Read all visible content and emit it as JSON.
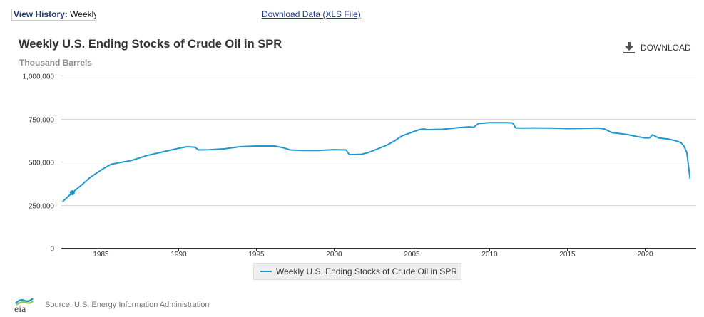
{
  "header": {
    "view_history_label": "View History:",
    "view_history_value": "Weekly",
    "download_data_link": "Download Data (XLS File)"
  },
  "chart_header": {
    "title": "Weekly U.S. Ending Stocks of Crude Oil in SPR",
    "subtitle": "Thousand Barrels",
    "download_label": "DOWNLOAD"
  },
  "footer": {
    "source": "Source: U.S. Energy Information Administration",
    "logo_text": "eia"
  },
  "colors": {
    "series": "#1f97d1",
    "grid": "#d8d8d8",
    "axis": "#333333"
  },
  "chart_data": {
    "type": "line",
    "title": "Weekly U.S. Ending Stocks of Crude Oil in SPR",
    "subtitle": "Thousand Barrels",
    "xlabel": "",
    "ylabel": "Thousand Barrels",
    "xlim": [
      1982.5,
      2023.3
    ],
    "ylim": [
      0,
      1000000
    ],
    "yticks": [
      0,
      250000,
      500000,
      750000,
      1000000
    ],
    "ytick_labels": [
      "0",
      "250,000",
      "500,000",
      "750,000",
      "1,000,000"
    ],
    "xticks": [
      1985,
      1990,
      1995,
      2000,
      2005,
      2010,
      2015,
      2020
    ],
    "xtick_labels": [
      "1985",
      "1990",
      "1995",
      "2000",
      "2005",
      "2010",
      "2015",
      "2020"
    ],
    "grid": true,
    "legend_position": "bottom-center",
    "highlight_point": {
      "x": 1983.2,
      "y": 320000
    },
    "series": [
      {
        "name": "Weekly U.S. Ending Stocks of Crude Oil in SPR",
        "x": [
          1982.6,
          1983.2,
          1983.8,
          1984.3,
          1984.7,
          1985.2,
          1985.7,
          1986.2,
          1987,
          1988,
          1989,
          1990,
          1990.6,
          1991.1,
          1991.3,
          1992,
          1993,
          1994,
          1995,
          1996.2,
          1996.8,
          1997.2,
          1998,
          1999,
          2000,
          2000.8,
          2001,
          2001.8,
          2002.2,
          2002.8,
          2003.4,
          2003.9,
          2004.4,
          2005,
          2005.5,
          2005.8,
          2006,
          2007,
          2008,
          2008.7,
          2009,
          2009.3,
          2010,
          2011.1,
          2011.5,
          2011.7,
          2012,
          2013,
          2014,
          2015,
          2016,
          2017,
          2017.4,
          2017.9,
          2018.3,
          2018.9,
          2019.5,
          2020,
          2020.3,
          2020.5,
          2020.9,
          2021.5,
          2022,
          2022.3,
          2022.5,
          2022.7,
          2022.9
        ],
        "values": [
          270000,
          320000,
          365000,
          405000,
          430000,
          460000,
          485000,
          494000,
          507000,
          536000,
          556000,
          577000,
          587000,
          584000,
          568000,
          569000,
          575000,
          587000,
          591000,
          591000,
          580000,
          568000,
          565000,
          565000,
          570000,
          568000,
          541000,
          543000,
          552000,
          573000,
          595000,
          620000,
          650000,
          670000,
          686000,
          690000,
          686000,
          688000,
          697000,
          702000,
          700000,
          721000,
          726000,
          726000,
          725000,
          696000,
          695000,
          696000,
          695000,
          692000,
          693000,
          695000,
          690000,
          668000,
          664000,
          657000,
          646000,
          638000,
          638000,
          656000,
          637000,
          632000,
          621000,
          611000,
          593000,
          554000,
          405000
        ]
      }
    ]
  }
}
